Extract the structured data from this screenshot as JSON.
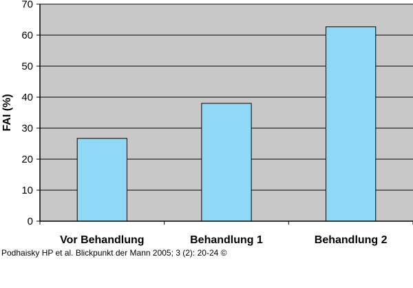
{
  "chart_data": {
    "type": "bar",
    "title": "",
    "xlabel": "",
    "ylabel": "FAI (%)",
    "ylim": [
      0,
      70
    ],
    "yticks": [
      0,
      10,
      20,
      30,
      40,
      50,
      60,
      70
    ],
    "grid": true,
    "categories": [
      "Vor Behandlung",
      "Behandlung 1",
      "Behandlung 2"
    ],
    "values": [
      26.7,
      38,
      62.7
    ],
    "colors": {
      "bar_fill": "#8fd8f6",
      "bar_stroke": "#000000",
      "plot_background": "#c8c8c8",
      "gridline": "#000000"
    }
  },
  "citation": {
    "text": "Podhaisky HP et al. Blickpunkt der Mann 2005; 3 (2): 20-24 ©"
  }
}
